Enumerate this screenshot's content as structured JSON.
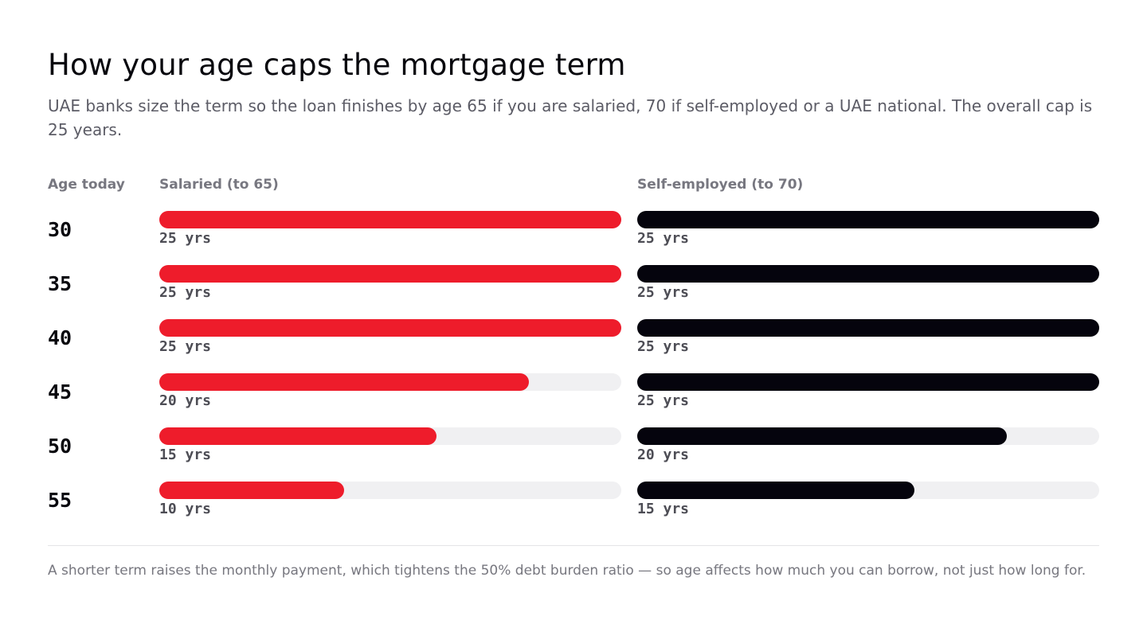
{
  "header": {
    "title": "How your age caps the mortgage term",
    "subtitle": "UAE banks size the term so the loan finishes by age 65 if you are salaried, 70 if self-employed or a UAE national. The overall cap is 25 years."
  },
  "footnote": "A shorter term raises the monthly payment, which tightens the 50% debt burden ratio — so age affects how much you can borrow, not just how long for.",
  "colors": {
    "salaried": "#ee1c2b",
    "self_employed": "#05040d",
    "track": "#f0f0f2"
  },
  "chart_data": {
    "type": "bar",
    "orientation": "horizontal",
    "row_header": "Age today",
    "categories": [
      "30",
      "35",
      "40",
      "45",
      "50",
      "55"
    ],
    "max": 25,
    "unit_suffix": " yrs",
    "series": [
      {
        "name": "Salaried (to 65)",
        "values": [
          25,
          25,
          25,
          20,
          15,
          10
        ],
        "labels": [
          "25 yrs",
          "25 yrs",
          "25 yrs",
          "20 yrs",
          "15 yrs",
          "10 yrs"
        ]
      },
      {
        "name": "Self-employed (to 70)",
        "values": [
          25,
          25,
          25,
          25,
          20,
          15
        ],
        "labels": [
          "25 yrs",
          "25 yrs",
          "25 yrs",
          "25 yrs",
          "20 yrs",
          "15 yrs"
        ]
      }
    ]
  }
}
